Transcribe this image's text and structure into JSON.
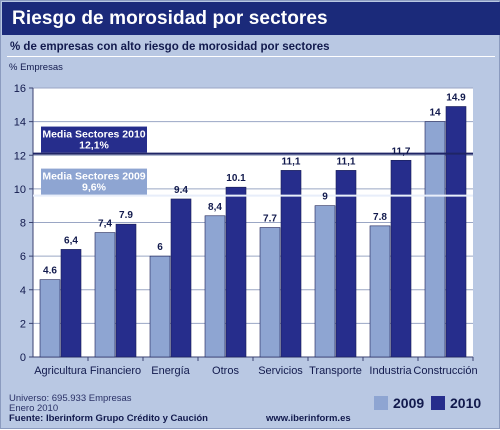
{
  "header": {
    "title": "Riesgo de morosidad por sectores",
    "subtitle": "% de empresas con alto riesgo de morosidad por sectores"
  },
  "footer": {
    "universe": "Universo: 695.933 Empresas",
    "date": "Enero 2010",
    "source": "Fuente: Iberinform Grupo Crédito y Caución",
    "url": "www.iberinform.es"
  },
  "colors": {
    "background": "#b9c8e3",
    "title_bar": "#1b2a7a",
    "series_2009": "#8ea5d2",
    "series_2010": "#262d8c",
    "line_2009": "#e8eefa",
    "line_2010": "#1f2566"
  },
  "chart_data": {
    "type": "bar",
    "ylabel": "% Empresas",
    "ylim": [
      0,
      16
    ],
    "yticks": [
      0,
      2,
      4,
      6,
      8,
      10,
      12,
      14,
      16
    ],
    "grid": true,
    "legend_position": "bottom-right",
    "categories": [
      "Agricultura",
      "Financiero",
      "Energía",
      "Otros",
      "Servicios",
      "Transporte",
      "Industria",
      "Construcción"
    ],
    "series": [
      {
        "name": "2009",
        "values": [
          4.6,
          7.4,
          6,
          8.4,
          7.7,
          9,
          7.8,
          14
        ],
        "labels": [
          "4.6",
          "7,4",
          "6",
          "8,4",
          "7.7",
          "9",
          "7.8",
          "14"
        ]
      },
      {
        "name": "2010",
        "values": [
          6.4,
          7.9,
          9.4,
          10.1,
          11.1,
          11.1,
          11.7,
          14.9
        ],
        "labels": [
          "6,4",
          "7.9",
          "9.4",
          "10.1",
          "11,1",
          "11,1",
          "11,7",
          "14.9"
        ]
      }
    ],
    "reference_lines": [
      {
        "series": "2010",
        "value": 12.1,
        "label": "Media Sectores 2010",
        "value_label": "12,1%"
      },
      {
        "series": "2009",
        "value": 9.6,
        "label": "Media Sectores 2009",
        "value_label": "9,6%"
      }
    ]
  }
}
